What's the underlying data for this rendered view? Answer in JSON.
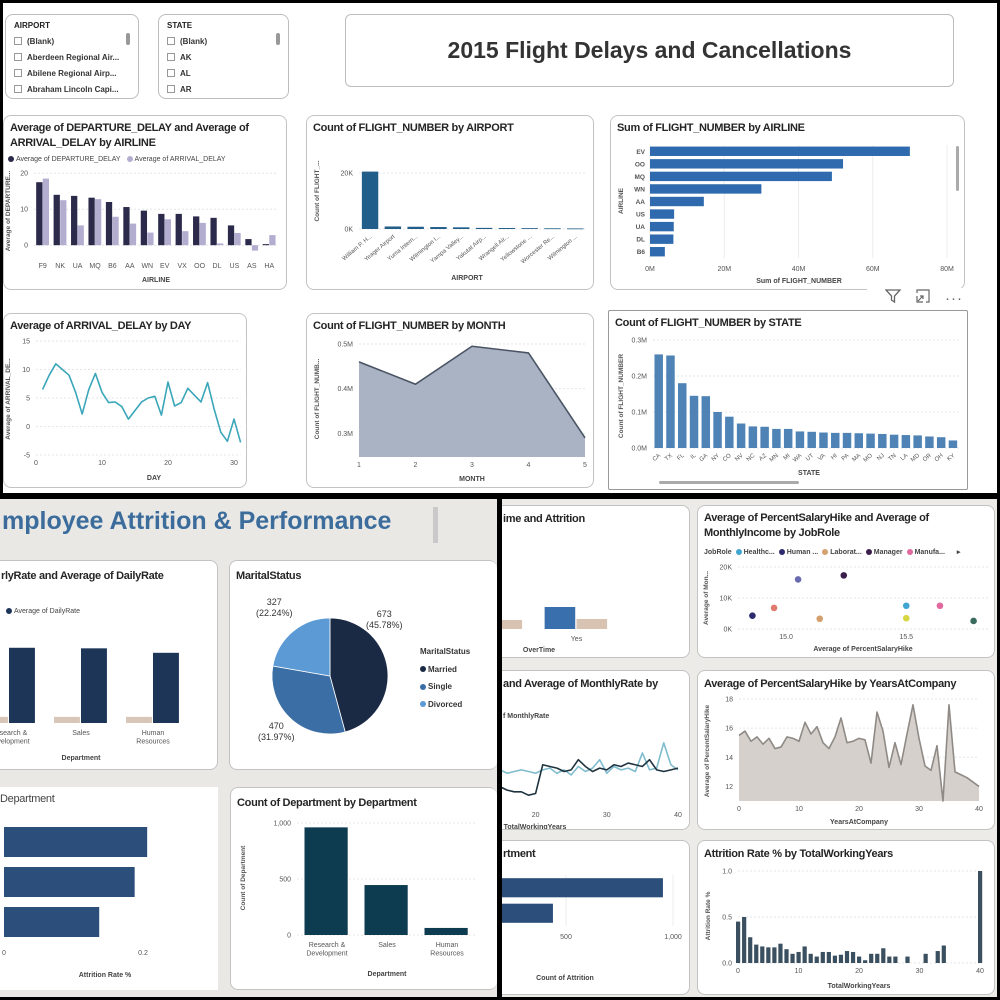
{
  "flight_dashboard": {
    "title": "2015 Flight Delays and Cancellations",
    "slicers": [
      {
        "header": "AIRPORT",
        "items": [
          "(Blank)",
          "Aberdeen Regional Air...",
          "Abilene Regional Airp...",
          "Abraham Lincoln Capi..."
        ]
      },
      {
        "header": "STATE",
        "items": [
          "(Blank)",
          "AK",
          "AL",
          "AR"
        ]
      }
    ],
    "visual_header_icons": [
      "filter-icon",
      "focus-mode-icon",
      "more-options-icon"
    ]
  },
  "hr_dashboard": {
    "title": "mployee Attrition & Performance"
  },
  "chart_data": [
    {
      "id": "dep_arr",
      "type": "bar",
      "title": "Average of DEPARTURE_DELAY and Average of\nARRIVAL_DELAY by AIRLINE",
      "categories": [
        "F9",
        "NK",
        "UA",
        "MQ",
        "B6",
        "AA",
        "WN",
        "EV",
        "VX",
        "OO",
        "DL",
        "US",
        "AS",
        "HA"
      ],
      "series": [
        {
          "name": "Average of DEPARTURE_DELAY",
          "color": "#2b2a4a",
          "values": [
            17.5,
            14,
            13.7,
            13.2,
            12,
            10.6,
            9.6,
            8.7,
            8.7,
            8,
            7.6,
            5.5,
            1.7,
            0.3
          ]
        },
        {
          "name": "Average of ARRIVAL_DELAY",
          "color": "#b3aed0",
          "values": [
            18.5,
            12.5,
            5.5,
            12.8,
            7.9,
            6,
            3.5,
            7.2,
            3.9,
            6.2,
            0.5,
            3.4,
            -1.5,
            2.8
          ]
        }
      ],
      "ylim": [
        -3,
        22
      ],
      "yticks": [
        0,
        10,
        20
      ],
      "ytick_labels": [
        "0",
        "10",
        "20"
      ],
      "xlabel": "AIRLINE",
      "ylabel": "Average of DEPARTURE...",
      "grid": true,
      "legend": "top-left"
    },
    {
      "id": "airport",
      "type": "bar",
      "title": "Count of FLIGHT_NUMBER by AIRPORT",
      "categories": [
        "William P. H...",
        "Yeager Airport",
        "Yuma Intern...",
        "Wilmington I...",
        "Yampa Valley...",
        "Yakutat Airp...",
        "Wrangell Air...",
        "Yellowstone ...",
        "Worcester Re...",
        "Wilmington ..."
      ],
      "series": [
        {
          "color": "#215f8a",
          "values": [
            20500,
            900,
            800,
            700,
            600,
            400,
            350,
            300,
            250,
            200
          ]
        }
      ],
      "ylim": [
        0,
        25000
      ],
      "yticks": [
        0,
        20000
      ],
      "ytick_labels": [
        "0K",
        "20K"
      ],
      "xlabel": "AIRPORT",
      "ylabel": "Count of FLIGHT_...",
      "grid": true
    },
    {
      "id": "airline",
      "type": "hbar",
      "title": "Sum of FLIGHT_NUMBER by AIRLINE",
      "categories": [
        "EV",
        "OO",
        "MQ",
        "WN",
        "AA",
        "US",
        "UA",
        "DL",
        "B6"
      ],
      "series": [
        {
          "color": "#2e6aad",
          "values": [
            70000000,
            52000000,
            49000000,
            30000000,
            14500000,
            6500000,
            6400000,
            6300000,
            4000000
          ]
        }
      ],
      "xlim": [
        0,
        80000000
      ],
      "xticks": [
        0,
        20000000,
        40000000,
        60000000,
        80000000
      ],
      "xtick_labels": [
        "0M",
        "20M",
        "40M",
        "60M",
        "80M"
      ],
      "xlabel": "Sum of FLIGHT_NUMBER",
      "ylabel": "AIRLINE",
      "grid": true
    },
    {
      "id": "day",
      "type": "line",
      "title": "Average of ARRIVAL_DELAY by DAY",
      "x": [
        1,
        2,
        3,
        4,
        5,
        6,
        7,
        8,
        9,
        10,
        11,
        12,
        13,
        14,
        15,
        16,
        17,
        18,
        19,
        20,
        21,
        22,
        23,
        24,
        25,
        26,
        27,
        28,
        29,
        30,
        31
      ],
      "series": [
        {
          "color": "#3aa6b9",
          "values": [
            6.5,
            9,
            11,
            10,
            9,
            6,
            2.2,
            6.5,
            9.3,
            6,
            4.2,
            4.3,
            3.5,
            1.3,
            2.8,
            4.3,
            5,
            5.3,
            2,
            7.8,
            3.6,
            4.2,
            6.7,
            5.5,
            4.3,
            7.7,
            3,
            -1,
            -2.6,
            1.3,
            -2.8
          ]
        }
      ],
      "xlim": [
        0,
        31
      ],
      "xticks": [
        0,
        10,
        20,
        30
      ],
      "xtick_labels": [
        "0",
        "10",
        "20",
        "30"
      ],
      "ylim": [
        -5,
        15
      ],
      "yticks": [
        -5,
        0,
        5,
        10,
        15
      ],
      "ytick_labels": [
        "-5",
        "0",
        "5",
        "10",
        "15"
      ],
      "xlabel": "DAY",
      "ylabel": "Average of ARRIVAL_DE...",
      "grid": true
    },
    {
      "id": "month",
      "type": "area",
      "title": "Count of FLIGHT_NUMBER by MONTH",
      "x": [
        1,
        2,
        3,
        4,
        5
      ],
      "series": [
        {
          "color": "#4a5464",
          "fill": "#a9b3c3",
          "values": [
            460000,
            410000,
            495000,
            480000,
            290000
          ]
        }
      ],
      "xlim": [
        1,
        5
      ],
      "xticks": [
        1,
        2,
        3,
        4,
        5
      ],
      "xtick_labels": [
        "1",
        "2",
        "3",
        "4",
        "5"
      ],
      "ylim": [
        247000,
        500000
      ],
      "yticks": [
        300000,
        400000,
        500000
      ],
      "ytick_labels": [
        "0.3M",
        "0.4M",
        "0.5M"
      ],
      "xlabel": "MONTH",
      "ylabel": "Count of FLIGHT_NUMB...",
      "grid": true
    },
    {
      "id": "state",
      "type": "bar",
      "title": "Count of FLIGHT_NUMBER by STATE",
      "categories": [
        "CA",
        "TX",
        "FL",
        "IL",
        "GA",
        "NY",
        "CO",
        "NV",
        "NC",
        "AZ",
        "MN",
        "MI",
        "WA",
        "UT",
        "VA",
        "HI",
        "PA",
        "MA",
        "MO",
        "NJ",
        "TN",
        "LA",
        "MD",
        "OR",
        "OH",
        "KY"
      ],
      "series": [
        {
          "color": "#4f83b5",
          "values": [
            260000,
            257000,
            180000,
            145000,
            144000,
            100000,
            87000,
            68000,
            60000,
            59000,
            53000,
            53000,
            46000,
            45000,
            43000,
            42000,
            42000,
            41000,
            40000,
            39000,
            37000,
            36000,
            35000,
            32000,
            30000,
            21000
          ]
        }
      ],
      "ylim": [
        0,
        300000
      ],
      "yticks": [
        0,
        100000,
        200000,
        300000
      ],
      "ytick_labels": [
        "0.0M",
        "0.1M",
        "0.2M",
        "0.3M"
      ],
      "xlabel": "STATE",
      "ylabel": "Count of FLIGHT_NUMBER",
      "grid": true
    },
    {
      "id": "hourly_daily",
      "type": "bar",
      "title": "rlyRate and Average of DailyRate",
      "categories": [
        "Research &\nDevelopment",
        "Sales",
        "Human\nResources"
      ],
      "series": [
        {
          "color": "#d8c6b8",
          "values": [
            66,
            66,
            66
          ]
        },
        {
          "name": "Average of DailyRate",
          "color": "#1d3557",
          "values": [
            806,
            800,
            752
          ]
        }
      ],
      "ylim": [
        0,
        900
      ],
      "xlabel": "Department",
      "grid": true
    },
    {
      "id": "marital",
      "type": "pie",
      "title": "MaritalStatus",
      "legend_title": "MaritalStatus",
      "slices": [
        {
          "label": "Married",
          "value": "673",
          "pct": "(45.78%)",
          "share": 45.78,
          "color": "#1b2a44"
        },
        {
          "label": "Single",
          "value": "470",
          "pct": "(31.97%)",
          "share": 31.97,
          "color": "#3a6ea5"
        },
        {
          "label": "Divorced",
          "value": "327",
          "pct": "(22.24%)",
          "share": 22.24,
          "color": "#5c9ad6"
        }
      ]
    },
    {
      "id": "attr_dept",
      "type": "hbar",
      "title": "Department",
      "categories": [
        "",
        "",
        ""
      ],
      "series": [
        {
          "color": "#2b4f7a",
          "values": [
            0.206,
            0.188,
            0.137
          ]
        }
      ],
      "xlim": [
        0,
        0.2
      ],
      "xticks": [
        0,
        0.2
      ],
      "xtick_labels": [
        "0",
        "0.2"
      ],
      "xlabel": "Attrition Rate %"
    },
    {
      "id": "dept_count",
      "type": "bar",
      "title": "Count of Department by Department",
      "categories": [
        "Research &\nDevelopment",
        "Sales",
        "Human\nResources"
      ],
      "series": [
        {
          "color": "#0d3b4f",
          "values": [
            961,
            446,
            63
          ]
        }
      ],
      "ylim": [
        0,
        1000
      ],
      "yticks": [
        0,
        500,
        1000
      ],
      "ytick_labels": [
        "0",
        "500",
        "1,000"
      ],
      "xlabel": "Department",
      "ylabel": "Count of Department",
      "grid": true
    },
    {
      "id": "overtime",
      "type": "bar",
      "title": "ime and Attrition",
      "categories": [
        "",
        "Yes"
      ],
      "series": [
        {
          "color": "#3a6fad",
          "values": [
            null,
            220
          ]
        },
        {
          "color": "#d8c2b2",
          "values": [
            90,
            100
          ]
        }
      ],
      "ylim": [
        0,
        300
      ],
      "xlabel": "OverTime",
      "grid": true
    },
    {
      "id": "salary_scatter",
      "type": "scatter",
      "title": "Average of PercentSalaryHike and Average of\nMonthlyIncome by JobRole",
      "legend_title": "JobRole",
      "legend": [
        {
          "label": "Healthc...",
          "color": "#41a5d1"
        },
        {
          "label": "Human ...",
          "color": "#2d2a6e"
        },
        {
          "label": "Laborat...",
          "color": "#d4a070"
        },
        {
          "label": "Manager",
          "color": "#3b1e4d"
        },
        {
          "label": "Manufa...",
          "color": "#e06aa0"
        }
      ],
      "points": [
        {
          "x": 14.86,
          "y": 4300,
          "color": "#2d2a6e"
        },
        {
          "x": 14.95,
          "y": 6800,
          "color": "#e0796e"
        },
        {
          "x": 15.05,
          "y": 16000,
          "color": "#6a6ab0"
        },
        {
          "x": 15.14,
          "y": 3300,
          "color": "#d4a070"
        },
        {
          "x": 15.24,
          "y": 17300,
          "color": "#3b1e4d"
        },
        {
          "x": 15.5,
          "y": 7500,
          "color": "#41a5d1"
        },
        {
          "x": 15.5,
          "y": 3500,
          "color": "#d6d640"
        },
        {
          "x": 15.64,
          "y": 7500,
          "color": "#e06aa0"
        },
        {
          "x": 15.78,
          "y": 2600,
          "color": "#3b6b5e"
        }
      ],
      "xlim": [
        14.8,
        15.84
      ],
      "xticks": [
        15.0,
        15.5
      ],
      "xtick_labels": [
        "15.0",
        "15.5"
      ],
      "ylim": [
        0,
        20000
      ],
      "yticks": [
        0,
        10000,
        20000
      ],
      "ytick_labels": [
        "0K",
        "10K",
        "20K"
      ],
      "xlabel": "Average of PercentSalaryHike",
      "ylabel": "Average of Mon...",
      "grid": true
    },
    {
      "id": "monthly_rate",
      "type": "line",
      "title": "and Average of MonthlyRate by",
      "x": [
        15,
        16,
        17,
        18,
        19,
        20,
        21,
        22,
        23,
        24,
        25,
        26,
        27,
        28,
        29,
        30,
        31,
        32,
        33,
        34,
        35,
        36,
        37,
        38,
        39,
        40
      ],
      "series": [
        {
          "color": "#7fbccd",
          "values": [
            14200,
            14000,
            14100,
            14200,
            14100,
            14000,
            14200,
            14300,
            14000,
            14200,
            13900,
            14400,
            14100,
            14300,
            14800,
            14000,
            14400,
            14200,
            14300,
            14100,
            15200,
            14200,
            14300,
            15800,
            14500,
            14200
          ]
        },
        {
          "name": "f MonthlyRate",
          "color": "#1e3340",
          "values": [
            13200,
            13000,
            12900,
            12900,
            12700,
            12800,
            14500,
            14400,
            14300,
            14100,
            14200,
            14800,
            14400,
            14100,
            14300,
            14200,
            14500,
            14400,
            14600,
            14500,
            14400,
            14800,
            14200,
            14100,
            14200,
            14300
          ]
        }
      ],
      "xlim": [
        15,
        40
      ],
      "xticks": [
        20,
        30,
        40
      ],
      "xtick_labels": [
        "20",
        "30",
        "40"
      ],
      "ylim": [
        12000,
        16500
      ],
      "xlabel": "TotalWorkingYears",
      "grid": true
    },
    {
      "id": "salary_years",
      "type": "area",
      "title": "Average of PercentSalaryHike by YearsAtCompany",
      "x": [
        0,
        1,
        2,
        3,
        4,
        5,
        6,
        7,
        8,
        9,
        10,
        11,
        12,
        13,
        14,
        15,
        16,
        17,
        18,
        19,
        20,
        21,
        22,
        23,
        24,
        25,
        26,
        27,
        28,
        29,
        30,
        31,
        32,
        33,
        34,
        35,
        36,
        37,
        38,
        39,
        40
      ],
      "series": [
        {
          "color": "#8f8a85",
          "fill": "#d5d0cb",
          "values": [
            15.5,
            15.8,
            15.1,
            15.4,
            14.9,
            15.3,
            14.6,
            14.7,
            15.4,
            15.3,
            15.1,
            16.4,
            15.6,
            16.1,
            15.0,
            14.6,
            15.4,
            16.7,
            15.0,
            15.1,
            15.3,
            15.2,
            13.6,
            17.1,
            15.8,
            13.3,
            15.0,
            13.5,
            15.6,
            17.6,
            15.3,
            13.4,
            13.1,
            14.8,
            11.0,
            17.6,
            13.0,
            12.8,
            12.6,
            12.3,
            12.0
          ]
        }
      ],
      "xlim": [
        0,
        40
      ],
      "xticks": [
        0,
        10,
        20,
        30,
        40
      ],
      "xtick_labels": [
        "0",
        "10",
        "20",
        "30",
        "40"
      ],
      "ylim": [
        11,
        18
      ],
      "yticks": [
        12,
        14,
        16,
        18
      ],
      "ytick_labels": [
        "12",
        "14",
        "16",
        "18"
      ],
      "xlabel": "YearsAtCompany",
      "ylabel": "Average of PercentSalaryHike",
      "grid": true
    },
    {
      "id": "attr_count",
      "type": "hbar",
      "title": "rtment",
      "categories": [
        "",
        ""
      ],
      "series": [
        {
          "color": "#2b4f7a",
          "values": [
            953,
            439
          ]
        }
      ],
      "xlim": [
        0,
        1000
      ],
      "xticks": [
        500,
        1000
      ],
      "xtick_labels": [
        "500",
        "1,000"
      ],
      "xlabel": "Count of Attrition",
      "grid": true
    },
    {
      "id": "attr_years",
      "type": "bar_numeric",
      "title": "Attrition Rate % by TotalWorkingYears",
      "x": [
        0,
        1,
        2,
        3,
        4,
        5,
        6,
        7,
        8,
        9,
        10,
        11,
        12,
        13,
        14,
        15,
        16,
        17,
        18,
        19,
        20,
        21,
        22,
        23,
        24,
        25,
        26,
        28,
        31,
        33,
        34,
        40
      ],
      "series": [
        {
          "color": "#3a4f5f",
          "values": [
            0.45,
            0.5,
            0.28,
            0.2,
            0.18,
            0.17,
            0.17,
            0.21,
            0.15,
            0.1,
            0.12,
            0.18,
            0.1,
            0.07,
            0.12,
            0.12,
            0.08,
            0.09,
            0.13,
            0.12,
            0.07,
            0.03,
            0.1,
            0.1,
            0.16,
            0.07,
            0.07,
            0.07,
            0.1,
            0.13,
            0.19,
            1.0
          ]
        }
      ],
      "xlim": [
        0,
        40
      ],
      "xticks": [
        0,
        10,
        20,
        30,
        40
      ],
      "xtick_labels": [
        "0",
        "10",
        "20",
        "30",
        "40"
      ],
      "ylim": [
        0,
        1
      ],
      "yticks": [
        0,
        0.5,
        1
      ],
      "ytick_labels": [
        "0.0",
        "0.5",
        "1.0"
      ],
      "xlabel": "TotalWorkingYears",
      "ylabel": "Attrition Rate %",
      "grid": true
    }
  ]
}
